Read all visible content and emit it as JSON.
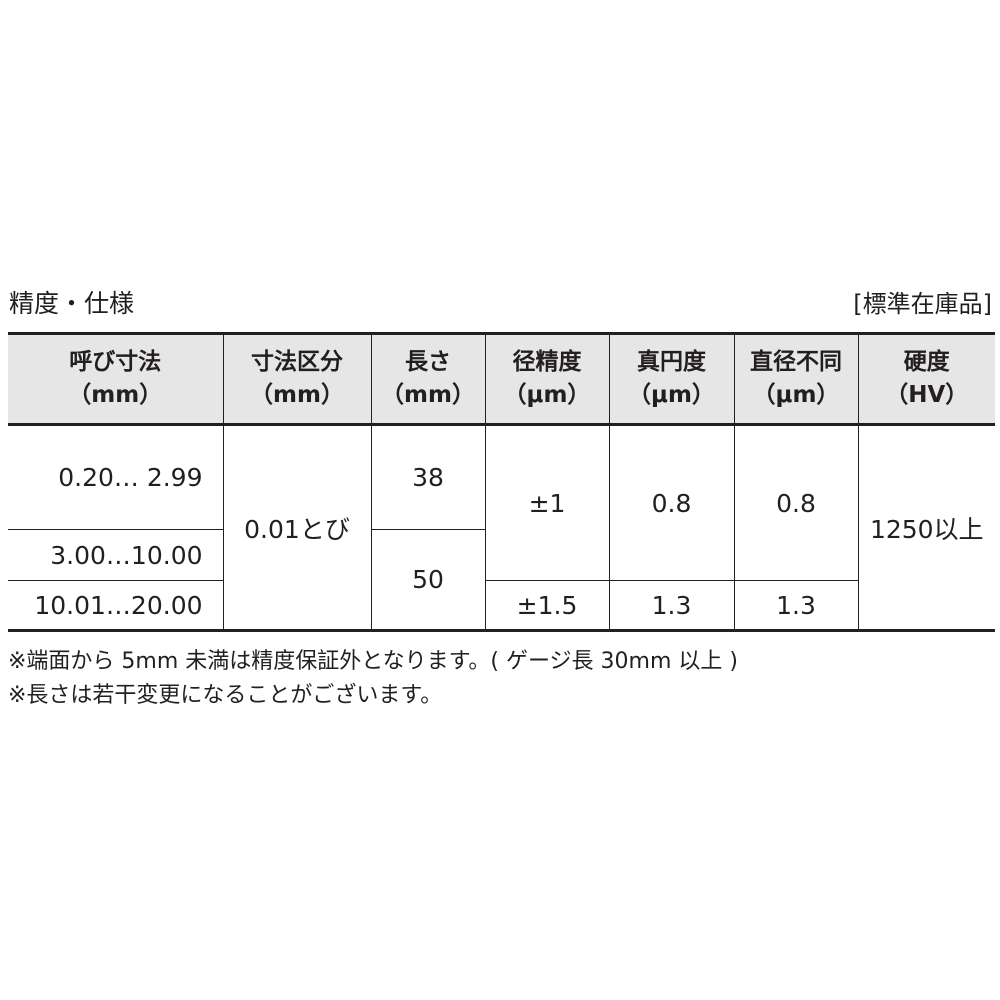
{
  "title": "精度・仕様",
  "stock_label": "[標準在庫品]",
  "table": {
    "headers": [
      {
        "line1": "呼び寸法",
        "line2": "（mm）"
      },
      {
        "line1": "寸法区分",
        "line2": "（mm）"
      },
      {
        "line1": "長さ",
        "line2": "（mm）"
      },
      {
        "line1": "径精度",
        "line2": "（μm）"
      },
      {
        "line1": "真円度",
        "line2": "（μm）"
      },
      {
        "line1": "直径不同",
        "line2": "（μm）"
      },
      {
        "line1": "硬度",
        "line2": "（HV）"
      }
    ],
    "nominal": [
      "0.20…  2.99",
      "3.00…10.00",
      "10.01…20.00"
    ],
    "increment": "0.01とび",
    "length": [
      "38",
      "50"
    ],
    "diameter_precision": [
      "±1",
      "±1.5"
    ],
    "roundness": [
      "0.8",
      "1.3"
    ],
    "diameter_variation": [
      "0.8",
      "1.3"
    ],
    "hardness": "1250以上"
  },
  "notes": [
    "※端面から 5mm 未満は精度保証外となります。( ゲージ長 30mm 以上 )",
    "※長さは若干変更になることがございます。"
  ]
}
